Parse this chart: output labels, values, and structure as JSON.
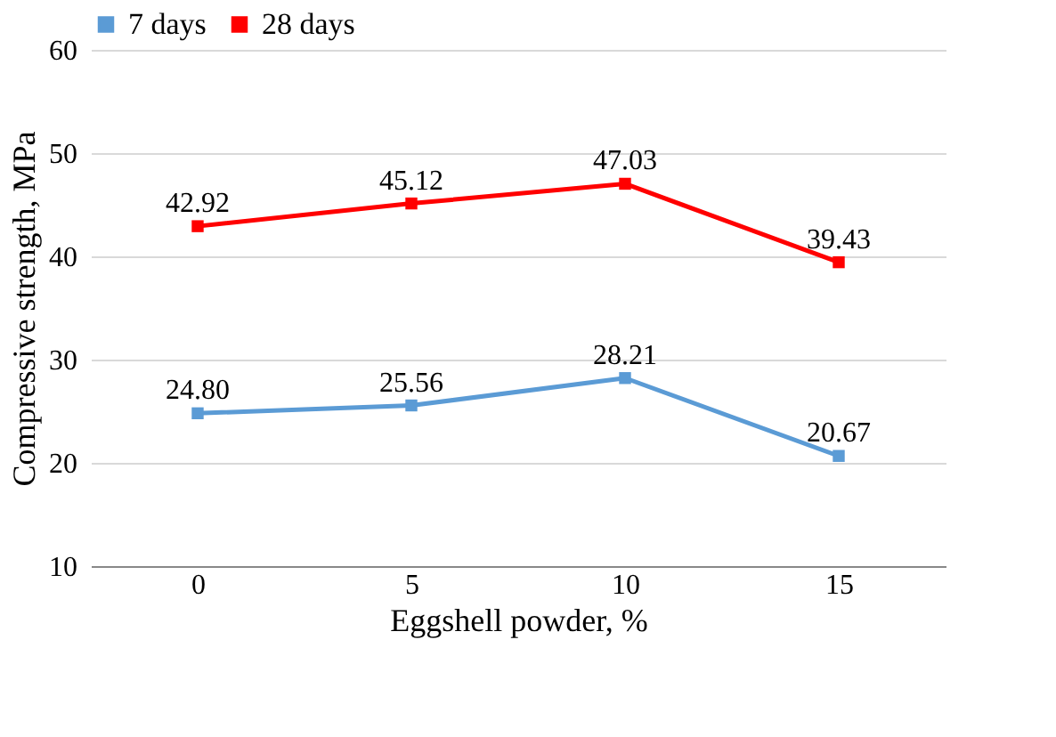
{
  "chart_data": {
    "type": "line",
    "xlabel": "Eggshell powder, %",
    "ylabel": "Compressive strength, MPa",
    "categories": [
      "0",
      "5",
      "10",
      "15"
    ],
    "series": [
      {
        "name": "7 days",
        "color": "#5b9bd5",
        "values": [
          24.8,
          25.56,
          28.21,
          20.67
        ],
        "value_labels": [
          "24.80",
          "25.56",
          "28.21",
          "20.67"
        ]
      },
      {
        "name": "28 days",
        "color": "#ff0000",
        "values": [
          42.92,
          45.12,
          47.03,
          39.43
        ],
        "value_labels": [
          "42.92",
          "45.12",
          "47.03",
          "39.43"
        ]
      }
    ],
    "ylim": [
      10,
      60
    ],
    "yticks": [
      10,
      20,
      30,
      40,
      50,
      60
    ],
    "grid": "y",
    "legend": "top",
    "marker": "square"
  }
}
